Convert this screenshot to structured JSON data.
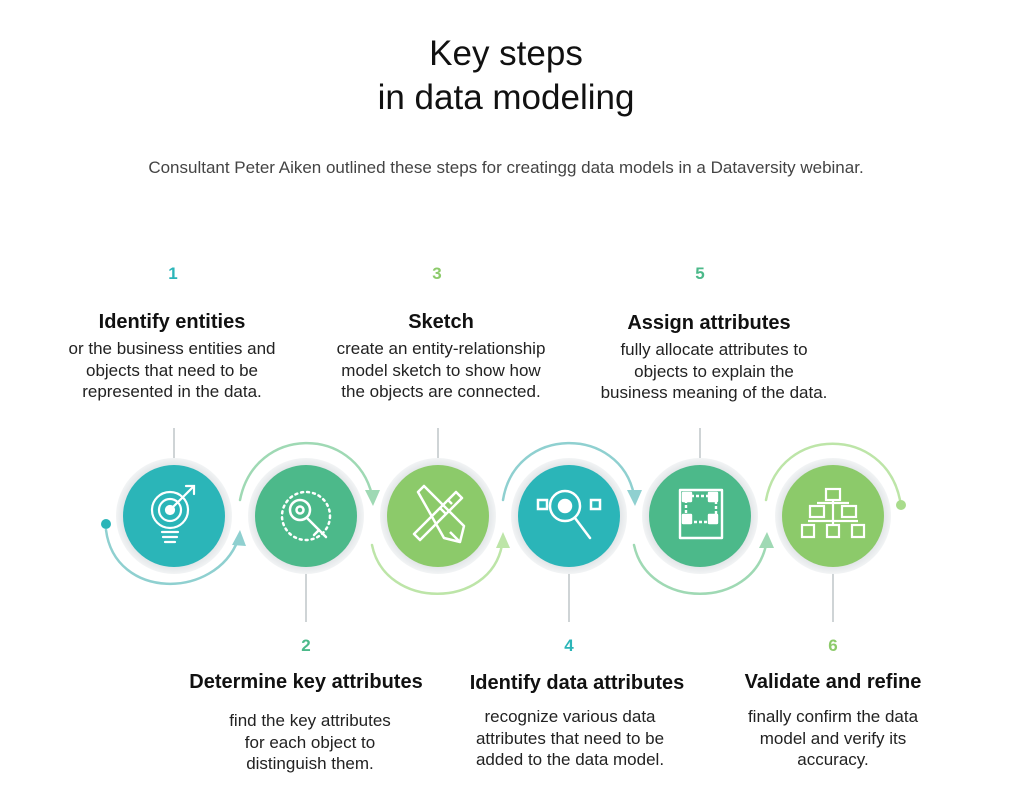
{
  "title_line1": "Key steps",
  "title_line2": "in data modeling",
  "subtitle": "Consultant Peter Aiken outlined these steps for creatingg data models in a Dataversity webinar.",
  "steps": [
    {
      "number": "1",
      "title": "Identify entities",
      "desc_line1": "or the business entities and",
      "desc_line2": "objects that need to be",
      "desc_line3": "represented in the data.",
      "color": "#2bb5b8",
      "icon": "target-bulb-icon"
    },
    {
      "number": "2",
      "title": "Determine key attributes",
      "desc_line1": "find the key attributes",
      "desc_line2": "for each object to",
      "desc_line3": "distinguish them.",
      "color": "#4cb98a",
      "icon": "key-icon"
    },
    {
      "number": "3",
      "title": "Sketch",
      "desc_line1": "create an entity-relationship",
      "desc_line2": "model sketch to show how",
      "desc_line3": "the objects are connected.",
      "color": "#8cca6a",
      "icon": "pencil-ruler-icon"
    },
    {
      "number": "4",
      "title": "Identify data attributes",
      "desc_line1": "recognize various data",
      "desc_line2": "attributes that need to be",
      "desc_line3": "added to the data model.",
      "color": "#2bb5b8",
      "icon": "magnifier-icon"
    },
    {
      "number": "5",
      "title": "Assign attributes",
      "desc_line1": "fully allocate attributes to",
      "desc_line2": "objects to explain the",
      "desc_line3": "business meaning of the data.",
      "color": "#4cb98a",
      "icon": "blueprint-icon"
    },
    {
      "number": "6",
      "title": "Validate and refine",
      "desc_line1": "finally confirm the data",
      "desc_line2": "model and verify its",
      "desc_line3": "accuracy.",
      "color": "#8cca6a",
      "icon": "hierarchy-icon"
    }
  ]
}
